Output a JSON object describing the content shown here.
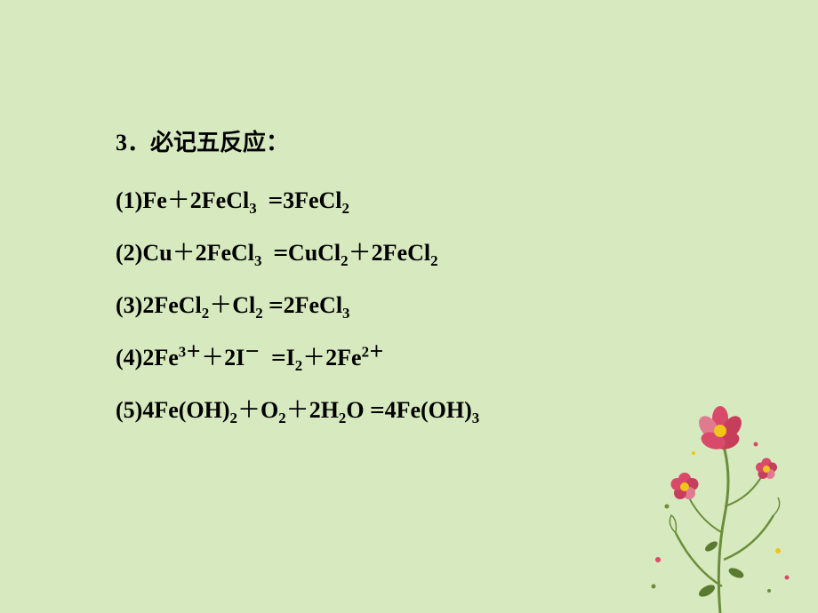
{
  "background_color": "#d7e9bf",
  "text_color": "#000000",
  "heading": {
    "number": "3",
    "separator": "．",
    "text": "必记五反应：",
    "fontsize": 26,
    "fontweight": "bold"
  },
  "equations": [
    {
      "index": "(1)",
      "lhs_html": "Fe<span class='plus'>＋</span>2FeCl<sub>3</sub>",
      "rhs_html": "3FeCl<sub>2</sub>"
    },
    {
      "index": "(2)",
      "lhs_html": "Cu<span class='plus'>＋</span>2FeCl<sub>3</sub>",
      "rhs_html": "CuCl<sub>2</sub><span class='plus'>＋</span>2FeCl<sub>2</sub>"
    },
    {
      "index": "(3)",
      "lhs_html": "2FeCl<sub>2</sub><span class='plus'>＋</span>Cl<sub>2</sub>",
      "rhs_html": "2FeCl<sub>3</sub>"
    },
    {
      "index": "(4)",
      "lhs_html": "2Fe<sup>3＋</sup><span class='plus'>＋</span>2I<sup>－</sup>",
      "rhs_html": "I<sub>2</sub><span class='plus'>＋</span>2Fe<sup>2＋</sup>"
    },
    {
      "index": "(5)",
      "lhs_html": "4Fe(OH)<sub>2</sub><span class='plus'>＋</span>O<sub>2</sub><span class='plus'>＋</span>2H<sub>2</sub>O",
      "rhs_html": "4Fe(OH)<sub>3</sub>"
    }
  ],
  "equation_style": {
    "fontsize": 26,
    "fontweight": "bold",
    "row_spacing": 22
  },
  "flower_decoration": {
    "stem_color": "#6b8e3a",
    "flower_colors": [
      "#d94a6a",
      "#c73e5c",
      "#e07a8f"
    ],
    "center_color": "#f0c419",
    "leaf_color": "#5a7a2f",
    "dot_colors": [
      "#d94a6a",
      "#6b8e3a",
      "#f0c419"
    ],
    "position": "bottom-right"
  }
}
